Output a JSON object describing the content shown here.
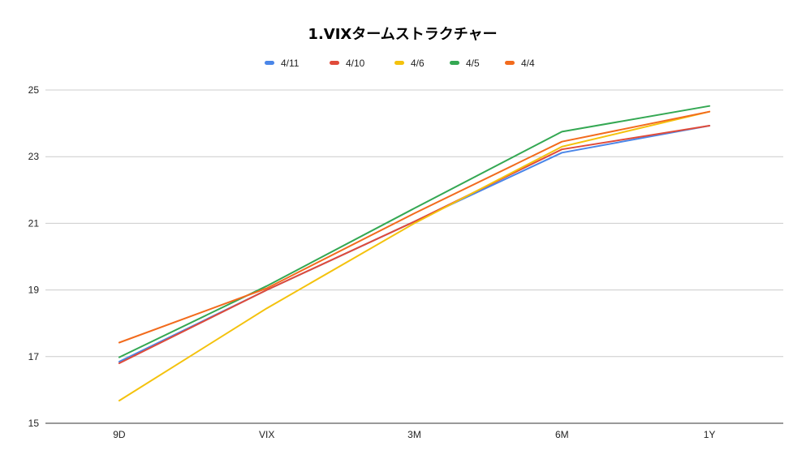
{
  "chart_data": {
    "type": "line",
    "title": "1.VIXタームストラクチャー",
    "xlabel": "",
    "ylabel": "",
    "categories": [
      "9D",
      "VIX",
      "3M",
      "6M",
      "1Y"
    ],
    "ylim": [
      15,
      25
    ],
    "yticks": [
      15,
      17,
      19,
      21,
      23,
      25
    ],
    "grid": true,
    "legend_position": "top",
    "series": [
      {
        "name": "4/11",
        "color": "#4a86e8",
        "values": [
          16.85,
          19.0,
          21.05,
          23.12,
          23.93
        ]
      },
      {
        "name": "4/10",
        "color": "#e04b3a",
        "values": [
          16.8,
          19.0,
          21.05,
          23.22,
          23.93
        ]
      },
      {
        "name": "4/6",
        "color": "#f4c20d",
        "values": [
          15.68,
          18.45,
          21.0,
          23.3,
          24.35
        ]
      },
      {
        "name": "4/5",
        "color": "#34a853",
        "values": [
          16.98,
          19.12,
          21.45,
          23.75,
          24.52
        ]
      },
      {
        "name": "4/4",
        "color": "#f26b1d",
        "values": [
          17.42,
          19.05,
          21.3,
          23.45,
          24.35
        ]
      }
    ]
  }
}
